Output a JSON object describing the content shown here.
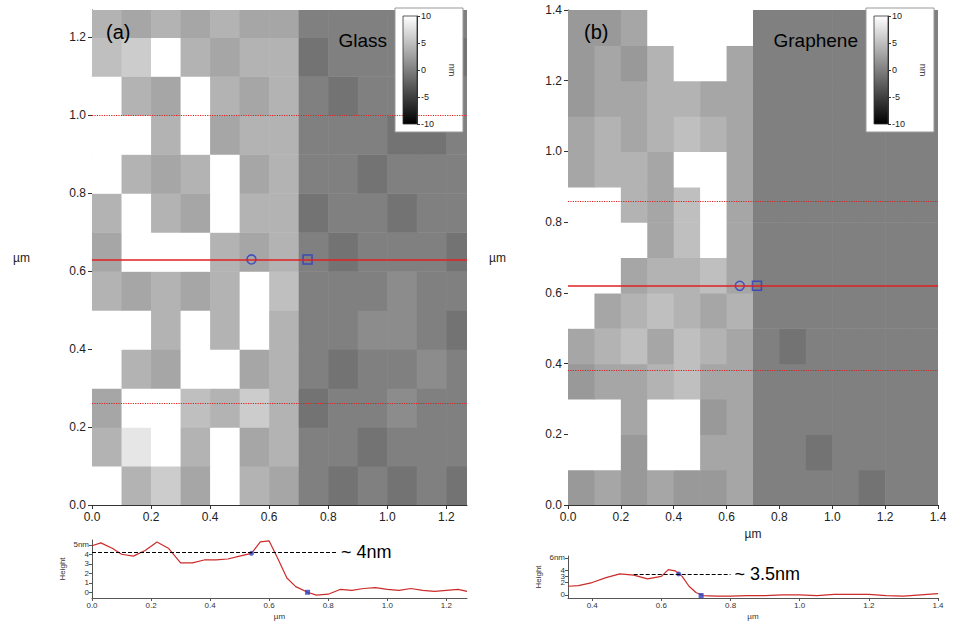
{
  "chart_data": [
    {
      "type": "heatmap",
      "panel": "(a)",
      "title": "Glass",
      "ylabel": "µm",
      "xlim": [
        0,
        1.27
      ],
      "ylim": [
        0,
        1.27
      ],
      "xticks": [
        {
          "value": 0,
          "label": "0.0"
        },
        0.2,
        0.4,
        0.6,
        0.8,
        {
          "value": 1,
          "label": "1.0"
        },
        1.2
      ],
      "yticks": [
        {
          "value": 0,
          "label": "0.0"
        },
        0.2,
        0.4,
        0.6,
        0.8,
        {
          "value": 1,
          "label": "1.0"
        },
        1.2
      ],
      "x": [
        0.05,
        0.15,
        0.25,
        0.35,
        0.45,
        0.55,
        0.65,
        0.75,
        0.85,
        0.95,
        1.05,
        1.15,
        1.25
      ],
      "y": [
        0.05,
        0.15,
        0.25,
        0.35,
        0.45,
        0.55,
        0.65,
        0.75,
        0.85,
        0.95,
        1.05,
        1.15,
        1.25
      ],
      "z": [
        [
          10,
          4,
          6,
          3,
          10,
          4,
          3,
          0,
          -1,
          0,
          -1,
          0,
          -1
        ],
        [
          4,
          8,
          10,
          4,
          10,
          3,
          4,
          0,
          0,
          -1,
          0,
          0,
          0
        ],
        [
          3,
          10,
          10,
          5,
          4,
          6,
          4,
          -1,
          0,
          0,
          1,
          0,
          0
        ],
        [
          10,
          4,
          3,
          10,
          10,
          3,
          4,
          0,
          -1,
          0,
          0,
          1,
          0
        ],
        [
          10,
          10,
          4,
          10,
          4,
          10,
          4,
          0,
          0,
          1,
          1,
          0,
          -1
        ],
        [
          4,
          3,
          4,
          3,
          4,
          10,
          5,
          0,
          0,
          0,
          1,
          0,
          0
        ],
        [
          3,
          10,
          10,
          10,
          4,
          3,
          4,
          0,
          -1,
          0,
          0,
          0,
          -1
        ],
        [
          4,
          10,
          4,
          3,
          10,
          4,
          4,
          -1,
          0,
          0,
          -1,
          0,
          0
        ],
        [
          10,
          4,
          3,
          4,
          10,
          3,
          4,
          0,
          0,
          -1,
          0,
          0,
          0
        ],
        [
          10,
          10,
          4,
          10,
          3,
          4,
          4,
          0,
          0,
          0,
          -1,
          -1,
          0
        ],
        [
          10,
          4,
          3,
          10,
          4,
          3,
          4,
          0,
          -1,
          0,
          0,
          0,
          0
        ],
        [
          5,
          6,
          10,
          4,
          3,
          4,
          4,
          -1,
          0,
          0,
          0,
          0,
          -1
        ],
        [
          4,
          3,
          4,
          3,
          4,
          3,
          3,
          0,
          0,
          0,
          0,
          -1,
          0
        ]
      ],
      "colorbar": {
        "range": [
          -10,
          10
        ],
        "ticks": [
          10,
          5,
          0,
          -5,
          -10
        ],
        "label": "nm"
      },
      "profile": {
        "y": 0.63,
        "band": [
          0.255,
          1.005
        ],
        "cursors": [
          [
            0.54,
            0.63
          ],
          [
            0.73,
            0.63
          ]
        ]
      },
      "grid": false
    },
    {
      "type": "line",
      "xlabel": "µm",
      "ylabel": "Height",
      "color": "#cc2b2b",
      "xlim": [
        0,
        1.27
      ],
      "ylim": [
        -0.6,
        5.5
      ],
      "xticks": [
        {
          "value": 0,
          "label": "0.0"
        },
        0.2,
        0.4,
        0.6,
        0.8,
        {
          "value": 1,
          "label": "1.0"
        },
        1.2
      ],
      "yticks": [
        0,
        1,
        2,
        3,
        4,
        {
          "value": 5,
          "label": "5nm"
        }
      ],
      "x": [
        0,
        0.03,
        0.07,
        0.1,
        0.14,
        0.18,
        0.22,
        0.26,
        0.3,
        0.34,
        0.38,
        0.42,
        0.46,
        0.5,
        0.54,
        0.57,
        0.6,
        0.63,
        0.66,
        0.69,
        0.73,
        0.76,
        0.8,
        0.84,
        0.88,
        0.92,
        0.96,
        1.0,
        1.04,
        1.08,
        1.12,
        1.16,
        1.2,
        1.24,
        1.27
      ],
      "values": [
        4.9,
        5.2,
        4.6,
        4.0,
        3.8,
        4.4,
        5.3,
        4.6,
        3.1,
        3.1,
        3.4,
        3.4,
        3.5,
        3.8,
        4.1,
        5.3,
        5.4,
        3.5,
        1.5,
        0.6,
        0.0,
        -0.3,
        -0.2,
        0.3,
        0.2,
        0.4,
        0.5,
        0.3,
        0.2,
        0.4,
        0.2,
        0.1,
        0.2,
        0.3,
        0.1
      ],
      "cursors": [
        [
          0.54,
          4.1
        ],
        [
          0.73,
          0.0
        ]
      ],
      "annotation": {
        "text": "~ 4nm",
        "y": 4.25,
        "x": [
          0,
          0.83
        ]
      },
      "grid": false
    },
    {
      "type": "heatmap",
      "panel": "(b)",
      "title": "Graphene",
      "xlabel": "µm",
      "ylabel": "µm",
      "xlim": [
        0,
        1.4
      ],
      "ylim": [
        0,
        1.4
      ],
      "xticks": [
        {
          "value": 0,
          "label": "0.0"
        },
        0.2,
        0.4,
        0.6,
        0.8,
        {
          "value": 1,
          "label": "1.0"
        },
        1.2,
        1.4
      ],
      "yticks": [
        {
          "value": 0,
          "label": "0.0"
        },
        0.2,
        0.4,
        0.6,
        0.8,
        {
          "value": 1,
          "label": "1.0"
        },
        1.2,
        1.4
      ],
      "x": [
        0.05,
        0.15,
        0.25,
        0.35,
        0.45,
        0.55,
        0.65,
        0.75,
        0.85,
        0.95,
        1.05,
        1.15,
        1.25,
        1.35
      ],
      "y": [
        0.05,
        0.15,
        0.25,
        0.35,
        0.45,
        0.55,
        0.65,
        0.75,
        0.85,
        0.95,
        1.05,
        1.15,
        1.25,
        1.35
      ],
      "z": [
        [
          2,
          3,
          2,
          3,
          2,
          2,
          3,
          0,
          0,
          0,
          0,
          -1,
          0,
          0
        ],
        [
          10,
          10,
          2,
          10,
          10,
          3,
          3,
          0,
          0,
          -1,
          0,
          0,
          0,
          0
        ],
        [
          10,
          10,
          3,
          10,
          10,
          2,
          3,
          0,
          0,
          0,
          0,
          0,
          0,
          0
        ],
        [
          2,
          3,
          3,
          4,
          5,
          3,
          3,
          0,
          0,
          0,
          0,
          0,
          0,
          0
        ],
        [
          3,
          4,
          5,
          3,
          5,
          4,
          3,
          0,
          -1,
          0,
          0,
          0,
          0,
          0
        ],
        [
          10,
          3,
          4,
          5,
          4,
          3,
          4,
          0,
          0,
          0,
          0,
          0,
          0,
          0
        ],
        [
          10,
          10,
          3,
          4,
          4,
          5,
          3,
          0,
          0,
          0,
          0,
          0,
          0,
          0
        ],
        [
          10,
          10,
          10,
          3,
          5,
          10,
          3,
          0,
          0,
          0,
          0,
          0,
          0,
          0
        ],
        [
          10,
          10,
          4,
          3,
          5,
          10,
          3,
          0,
          0,
          0,
          0,
          0,
          0,
          0
        ],
        [
          3,
          4,
          4,
          3,
          10,
          10,
          3,
          0,
          0,
          0,
          0,
          0,
          0,
          0
        ],
        [
          3,
          4,
          3,
          4,
          5,
          4,
          3,
          0,
          0,
          0,
          0,
          0,
          0,
          0
        ],
        [
          2,
          3,
          3,
          4,
          4,
          3,
          3,
          0,
          0,
          0,
          0,
          0,
          0,
          0
        ],
        [
          2,
          3,
          2,
          4,
          10,
          10,
          3,
          0,
          0,
          0,
          0,
          0,
          0,
          0
        ],
        [
          2,
          2,
          3,
          10,
          10,
          10,
          10,
          0,
          0,
          0,
          0,
          0,
          0,
          0
        ]
      ],
      "colorbar": {
        "range": [
          -10,
          10
        ],
        "ticks": [
          10,
          5,
          0,
          -5,
          -10
        ],
        "label": "nm"
      },
      "profile": {
        "y": 0.62,
        "band": [
          0.375,
          0.865
        ],
        "cursors": [
          [
            0.65,
            0.62
          ],
          [
            0.715,
            0.62
          ]
        ]
      },
      "grid": false
    },
    {
      "type": "line",
      "xlabel": "µm",
      "ylabel": "Height",
      "color": "#cc2b2b",
      "xlim": [
        0.33,
        1.4
      ],
      "ylim": [
        -0.5,
        6.3
      ],
      "xticks": [
        0.4,
        0.6,
        0.8,
        {
          "value": 1,
          "label": "1.0"
        },
        1.2,
        1.4
      ],
      "yticks": [
        0,
        1,
        2,
        3,
        4,
        5,
        {
          "value": 6,
          "label": "6nm"
        }
      ],
      "x": [
        0.33,
        0.36,
        0.4,
        0.44,
        0.48,
        0.52,
        0.56,
        0.6,
        0.62,
        0.64,
        0.66,
        0.68,
        0.7,
        0.72,
        0.76,
        0.8,
        0.85,
        0.9,
        0.95,
        1.0,
        1.05,
        1.1,
        1.15,
        1.2,
        1.25,
        1.3,
        1.35,
        1.4
      ],
      "values": [
        1.4,
        1.5,
        2.0,
        2.8,
        3.4,
        3.2,
        2.6,
        3.0,
        4.1,
        3.9,
        3.0,
        1.4,
        0.4,
        -0.1,
        -0.2,
        -0.2,
        -0.1,
        -0.1,
        0.0,
        0.0,
        -0.1,
        0.1,
        0.1,
        0.1,
        -0.1,
        -0.2,
        0.0,
        0.2
      ],
      "cursors": [
        [
          0.65,
          3.4
        ],
        [
          0.715,
          -0.1
        ]
      ],
      "annotation": {
        "text": "~ 3.5nm",
        "y": 3.4,
        "x": [
          0.52,
          0.8
        ]
      },
      "grid": false
    }
  ]
}
